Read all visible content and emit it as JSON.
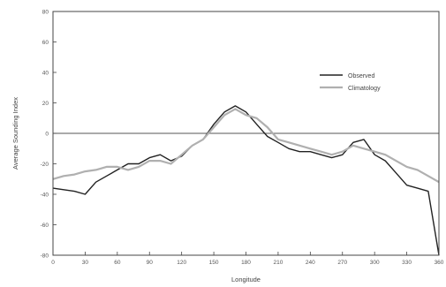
{
  "chart_data": {
    "type": "line",
    "title": "",
    "xlabel": "Longitude",
    "ylabel": "Average Sounding Index",
    "xlim": [
      0,
      360
    ],
    "ylim": [
      -80,
      80
    ],
    "x_ticks": [
      "0",
      "30",
      "60",
      "90",
      "120",
      "150",
      "180",
      "210",
      "240",
      "270",
      "300",
      "330",
      "360"
    ],
    "y_ticks": [
      "80",
      "60",
      "40",
      "20",
      "0",
      "-20",
      "-40",
      "-60",
      "-80"
    ],
    "reference_line_y": 0,
    "grid": false,
    "legend_position": "top-right",
    "series": [
      {
        "name": "Observed",
        "color": "#222222",
        "x": [
          0,
          10,
          20,
          30,
          40,
          50,
          60,
          70,
          80,
          90,
          100,
          110,
          120,
          130,
          140,
          150,
          160,
          170,
          180,
          190,
          200,
          210,
          220,
          230,
          240,
          250,
          260,
          270,
          280,
          290,
          300,
          310,
          320,
          330,
          340,
          350,
          360
        ],
        "y": [
          -36,
          -37,
          -38,
          -40,
          -32,
          -28,
          -24,
          -20,
          -20,
          -16,
          -14,
          -18,
          -15,
          -8,
          -4,
          6,
          14,
          18,
          14,
          6,
          -2,
          -6,
          -10,
          -12,
          -12,
          -14,
          -16,
          -14,
          -6,
          -4,
          -14,
          -18,
          -26,
          -34,
          -36,
          -38,
          -80
        ]
      },
      {
        "name": "Climatology",
        "color": "#b0b0b0",
        "x": [
          0,
          10,
          20,
          30,
          40,
          50,
          60,
          70,
          80,
          90,
          100,
          110,
          120,
          130,
          140,
          150,
          160,
          170,
          180,
          190,
          200,
          210,
          220,
          230,
          240,
          250,
          260,
          270,
          280,
          290,
          300,
          310,
          320,
          330,
          340,
          350,
          360
        ],
        "y": [
          -30,
          -28,
          -27,
          -25,
          -24,
          -22,
          -22,
          -24,
          -22,
          -18,
          -18,
          -20,
          -14,
          -8,
          -4,
          4,
          12,
          16,
          12,
          10,
          4,
          -4,
          -6,
          -8,
          -10,
          -12,
          -14,
          -12,
          -8,
          -10,
          -12,
          -14,
          -18,
          -22,
          -24,
          -28,
          -32
        ]
      }
    ]
  },
  "legend": {
    "observed_label": "Observed",
    "climatology_label": "Climatology"
  }
}
